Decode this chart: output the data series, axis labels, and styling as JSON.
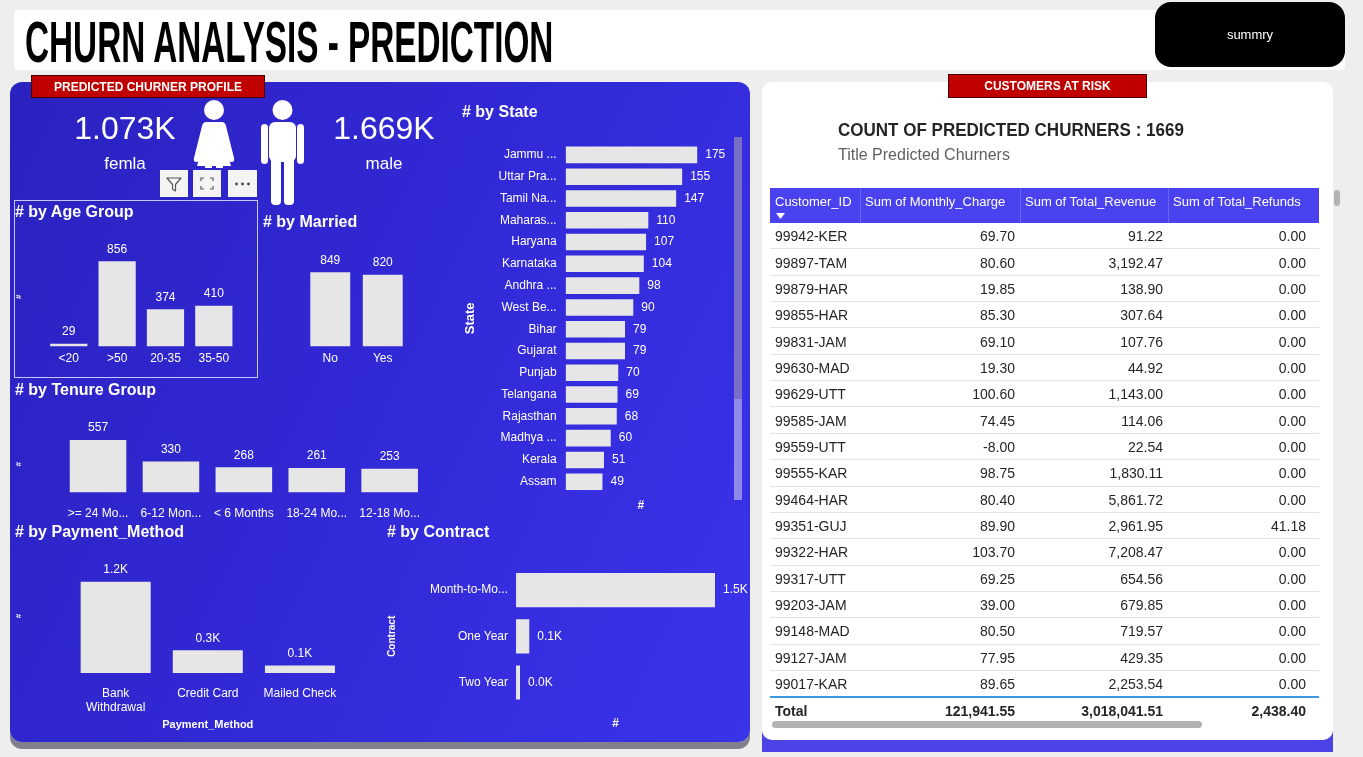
{
  "chart_data": [
    {
      "type": "other",
      "title": "CHURN ANALYSIS - PREDICTION",
      "annotations": [
        "summry"
      ]
    },
    {
      "type": "other",
      "title": "PREDICTED CHURNER PROFILE",
      "annotations": [
        "1.073K",
        "femla",
        "1.669K",
        "male"
      ]
    },
    {
      "type": "bar",
      "title": "# by Age Group",
      "ylabel": "#",
      "categories": [
        "<20",
        ">50",
        "20-35",
        "35-50"
      ],
      "values": [
        29,
        856,
        374,
        410
      ],
      "color": "#e6e6e6",
      "data_labels": true,
      "tick_labels": "x"
    },
    {
      "type": "bar",
      "title": "# by Married",
      "categories": [
        "No",
        "Yes"
      ],
      "values": [
        849,
        820
      ],
      "color": "#e6e6e6",
      "data_labels": true,
      "tick_labels": "x"
    },
    {
      "type": "bar",
      "orientation": "horizontal",
      "title": "# by State",
      "xlabel": "#",
      "ylabel": "State",
      "categories": [
        "Jammu ...",
        "Uttar Pra...",
        "Tamil Na...",
        "Maharas...",
        "Haryana",
        "Karnataka",
        "Andhra ...",
        "West Be...",
        "Bihar",
        "Gujarat",
        "Punjab",
        "Telangana",
        "Rajasthan",
        "Madhya ...",
        "Kerala",
        "Assam"
      ],
      "values": [
        175,
        155,
        147,
        110,
        107,
        104,
        98,
        90,
        79,
        79,
        70,
        69,
        68,
        60,
        51,
        49
      ],
      "color": "#e6e6e6",
      "data_labels": true,
      "tick_labels": "y"
    },
    {
      "type": "bar",
      "title": "# by Tenure Group",
      "ylabel": "#",
      "categories": [
        ">= 24 Mo...",
        "6-12 Mon...",
        "< 6 Months",
        "18-24 Mo...",
        "12-18 Mo..."
      ],
      "values": [
        557,
        330,
        268,
        261,
        253
      ],
      "color": "#e6e6e6",
      "data_labels": true,
      "tick_labels": "x"
    },
    {
      "type": "bar",
      "title": "# by Payment_Method",
      "xlabel": "Payment_Method",
      "ylabel": "#",
      "categories": [
        "Bank Withdrawal",
        "Credit Card",
        "Mailed Check"
      ],
      "values": [
        1200,
        300,
        100
      ],
      "value_labels": [
        "1.2K",
        "0.3K",
        "0.1K"
      ],
      "color": "#e6e6e6",
      "tick_labels": "x"
    },
    {
      "type": "bar",
      "orientation": "horizontal",
      "title": "# by Contract",
      "xlabel": "#",
      "ylabel": "Contract",
      "categories": [
        "Month-to-Mo...",
        "One Year",
        "Two Year"
      ],
      "values": [
        1500,
        100,
        30
      ],
      "value_labels": [
        "1.5K",
        "0.1K",
        "0.0K"
      ],
      "color": "#e6e6e6",
      "tick_labels": "y"
    },
    {
      "type": "other",
      "title": "CUSTOMERS AT RISK",
      "subtitle": "COUNT OF PREDICTED CHURNERS : 1669",
      "annotations": [
        "Title Predicted Churners"
      ],
      "xlabel": "Customer_ID",
      "categories": [
        "99942-KER",
        "99897-TAM",
        "99879-HAR",
        "99855-HAR",
        "99831-JAM",
        "99630-MAD",
        "99629-UTT",
        "99585-JAM",
        "99559-UTT",
        "99555-KAR",
        "99464-HAR",
        "99351-GUJ",
        "99322-HAR",
        "99317-UTT",
        "99203-JAM",
        "99148-MAD",
        "99127-JAM",
        "99017-KAR",
        "Total"
      ],
      "series": [
        {
          "name": "Sum of Monthly_Charge",
          "values": [
            69.7,
            80.6,
            19.85,
            85.3,
            69.1,
            19.3,
            100.6,
            74.45,
            -8,
            98.75,
            80.4,
            89.9,
            103.7,
            69.25,
            39,
            80.5,
            77.95,
            89.65,
            121941.55
          ],
          "value_labels": [
            "69.70",
            "80.60",
            "19.85",
            "85.30",
            "69.10",
            "19.30",
            "100.60",
            "74.45",
            "-8.00",
            "98.75",
            "80.40",
            "89.90",
            "103.70",
            "69.25",
            "39.00",
            "80.50",
            "77.95",
            "89.65",
            "121,941.55"
          ]
        },
        {
          "name": "Sum of Total_Revenue",
          "values": [
            91.22,
            3192.47,
            138.9,
            307.64,
            107.76,
            44.92,
            1143,
            114.06,
            22.54,
            1830.11,
            5861.72,
            2961.95,
            7208.47,
            654.56,
            679.85,
            719.57,
            429.35,
            2253.54,
            3018041.51
          ],
          "value_labels": [
            "91.22",
            "3,192.47",
            "138.90",
            "307.64",
            "107.76",
            "44.92",
            "1,143.00",
            "114.06",
            "22.54",
            "1,830.11",
            "5,861.72",
            "2,961.95",
            "7,208.47",
            "654.56",
            "679.85",
            "719.57",
            "429.35",
            "2,253.54",
            "3,018,041.51"
          ]
        },
        {
          "name": "Sum of Total_Refunds",
          "values": [
            0,
            0,
            0,
            0,
            0,
            0,
            0,
            0,
            0,
            0,
            0,
            41.18,
            0,
            0,
            0,
            0,
            0,
            0,
            2438.4
          ],
          "value_labels": [
            "0.00",
            "0.00",
            "0.00",
            "0.00",
            "0.00",
            "0.00",
            "0.00",
            "0.00",
            "0.00",
            "0.00",
            "0.00",
            "41.18",
            "0.00",
            "0.00",
            "0.00",
            "0.00",
            "0.00",
            "0.00",
            "2,438.40"
          ]
        }
      ]
    }
  ]
}
